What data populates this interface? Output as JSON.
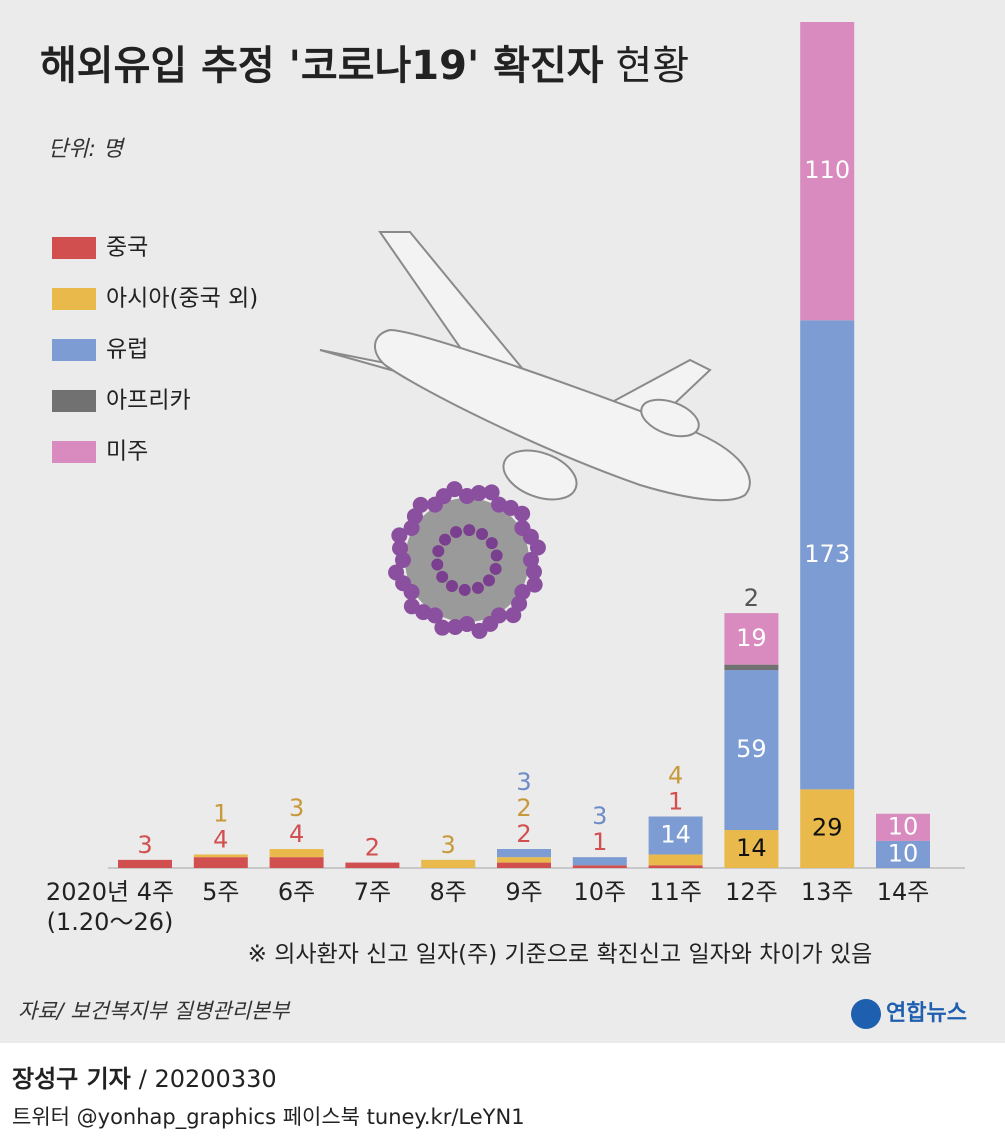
{
  "title": "해외유입 추정 '코로나19' 확진자",
  "title_light": "현황",
  "unit": "단위: 명",
  "chart_data": {
    "type": "stacked-bar",
    "categories": [
      "2020년 4주",
      "5주",
      "6주",
      "7주",
      "8주",
      "9주",
      "10주",
      "11주",
      "12주",
      "13주",
      "14주"
    ],
    "category_note": "(1.20～26)",
    "series": [
      {
        "name": "중국",
        "color": "#d24f4f",
        "values": [
          3,
          4,
          4,
          2,
          null,
          2,
          1,
          1,
          null,
          null,
          null
        ]
      },
      {
        "name": "아시아(중국 외)",
        "color": "#e9b94c",
        "values": [
          null,
          1,
          3,
          null,
          3,
          2,
          null,
          4,
          14,
          29,
          null
        ]
      },
      {
        "name": "유럽",
        "color": "#7d9cd3",
        "values": [
          null,
          null,
          null,
          null,
          null,
          3,
          3,
          14,
          59,
          173,
          10
        ]
      },
      {
        "name": "아프리카",
        "color": "#717171",
        "values": [
          null,
          null,
          null,
          null,
          null,
          null,
          null,
          null,
          2,
          null,
          null
        ]
      },
      {
        "name": "미주",
        "color": "#d98abe",
        "values": [
          null,
          null,
          null,
          null,
          null,
          null,
          null,
          null,
          19,
          110,
          10
        ]
      }
    ]
  },
  "note": "※ 의사환자 신고 일자(주) 기준으로 확진신고 일자와 차이가 있음",
  "source": "자료/ 보건복지부 질병관리본부",
  "logo": "연합뉴스",
  "reporter": "장성구 기자",
  "date_line": "/ 20200330",
  "social": "트위터 @yonhap_graphics  페이스북 tuney.kr/LeYN1"
}
